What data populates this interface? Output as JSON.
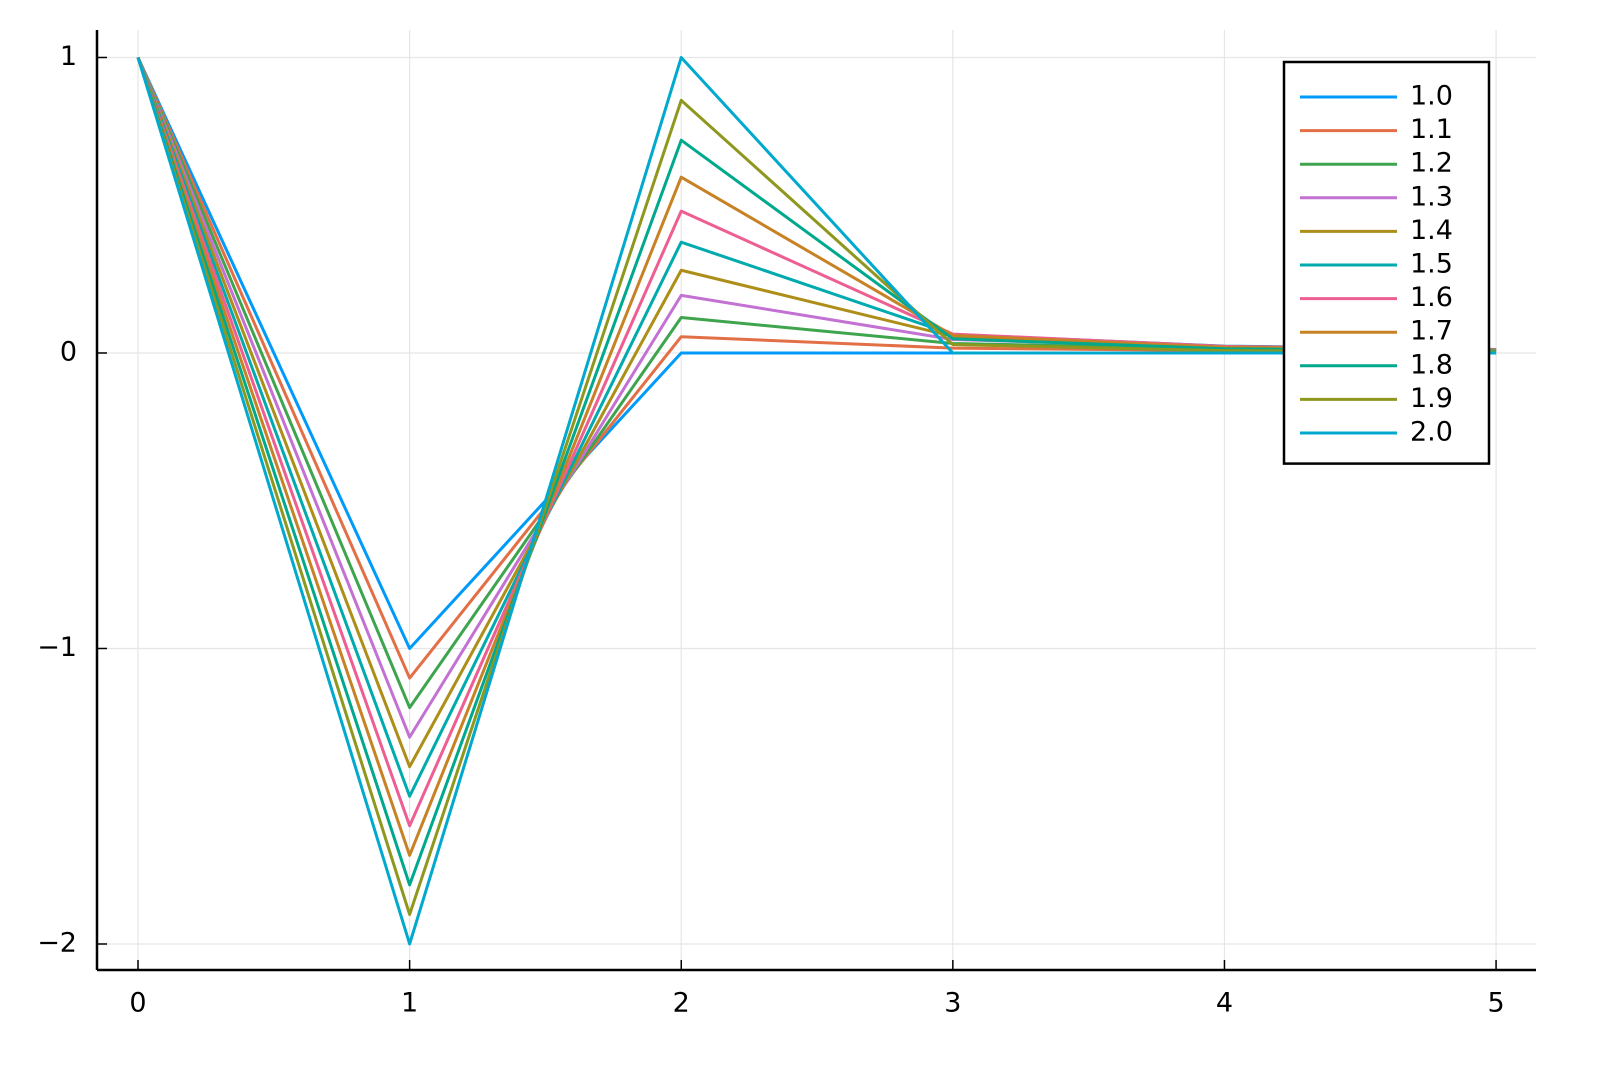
{
  "chart_data": {
    "type": "line",
    "x": [
      0,
      1,
      2,
      3,
      4,
      5
    ],
    "series": [
      {
        "name": "1.0",
        "color": "#009afa",
        "values": [
          1,
          -1,
          0,
          0,
          0,
          0
        ]
      },
      {
        "name": "1.1",
        "color": "#e36f47",
        "values": [
          1,
          -1.1,
          0.055,
          0.0165,
          0.0078,
          0.0045
        ]
      },
      {
        "name": "1.2",
        "color": "#3ea44e",
        "values": [
          1,
          -1.2,
          0.12,
          0.032,
          0.0144,
          0.0081
        ]
      },
      {
        "name": "1.3",
        "color": "#c371d2",
        "values": [
          1,
          -1.3,
          0.195,
          0.0455,
          0.0193,
          0.0104
        ]
      },
      {
        "name": "1.4",
        "color": "#ac8e18",
        "values": [
          1,
          -1.4,
          0.28,
          0.056,
          0.0224,
          0.0116
        ]
      },
      {
        "name": "1.5",
        "color": "#00aaae",
        "values": [
          1,
          -1.5,
          0.375,
          0.0625,
          0.0234,
          0.0117
        ]
      },
      {
        "name": "1.6",
        "color": "#ed5e93",
        "values": [
          1,
          -1.6,
          0.48,
          0.064,
          0.0224,
          0.0108
        ]
      },
      {
        "name": "1.7",
        "color": "#c68225",
        "values": [
          1,
          -1.7,
          0.595,
          0.0595,
          0.0193,
          0.0089
        ]
      },
      {
        "name": "1.8",
        "color": "#00a98d",
        "values": [
          1,
          -1.8,
          0.72,
          0.048,
          0.0144,
          0.0063
        ]
      },
      {
        "name": "1.9",
        "color": "#8e971e",
        "values": [
          1,
          -1.9,
          0.855,
          0.0285,
          0.0078,
          0.0033
        ]
      },
      {
        "name": "2.0",
        "color": "#00a9cd",
        "values": [
          1,
          -2,
          1,
          0,
          0,
          0
        ]
      }
    ],
    "xlim": [
      -0.151,
      5.147
    ],
    "ylim": [
      -2.088,
      1.093
    ],
    "xticks": [
      0,
      1,
      2,
      3,
      4,
      5
    ],
    "yticks": [
      {
        "value": -2,
        "label": "−2"
      },
      {
        "value": -1,
        "label": "−1"
      },
      0,
      1
    ],
    "grid": true,
    "legend": "top-right"
  }
}
